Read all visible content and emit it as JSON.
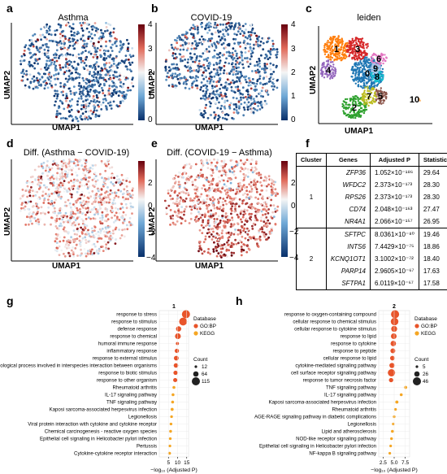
{
  "panels": {
    "a": {
      "letter": "a",
      "title": "Asthma",
      "xlabel": "UMAP1",
      "ylabel": "UMAP2",
      "cbar_ticks": [
        "4",
        "3",
        "2",
        "1",
        "0"
      ]
    },
    "b": {
      "letter": "b",
      "title": "COVID-19",
      "xlabel": "UMAP1",
      "ylabel": "UMAP2",
      "cbar_ticks": [
        "4",
        "3",
        "2",
        "1",
        "0"
      ]
    },
    "c": {
      "letter": "c",
      "title": "leiden",
      "xlabel": "UMAP1",
      "ylabel": "UMAP2",
      "clusters": [
        {
          "label": "0",
          "color": "#1f77b4"
        },
        {
          "label": "1",
          "color": "#ff7f0e"
        },
        {
          "label": "2",
          "color": "#2ca02c"
        },
        {
          "label": "3",
          "color": "#d62728"
        },
        {
          "label": "4",
          "color": "#9467bd"
        },
        {
          "label": "5",
          "color": "#8c564b"
        },
        {
          "label": "6",
          "color": "#e377c2"
        },
        {
          "label": "7",
          "color": "#bcbd22"
        },
        {
          "label": "8",
          "color": "#17becf"
        },
        {
          "label": "9",
          "color": "#aec7e8"
        },
        {
          "label": "10",
          "color": "#ffbb78"
        }
      ]
    },
    "d": {
      "letter": "d",
      "title": "Diff. (Asthma − COVID-19)",
      "xlabel": "UMAP1",
      "ylabel": "UMAP2",
      "cbar_ticks": [
        "2",
        "0",
        "−2",
        "−4"
      ]
    },
    "e": {
      "letter": "e",
      "title": "Diff. (COVID-19 − Asthma)",
      "xlabel": "UMAP1",
      "ylabel": "UMAP2",
      "cbar_ticks": [
        "2",
        "0",
        "−2",
        "−4"
      ]
    },
    "f": {
      "letter": "f",
      "headers": [
        "Cluster",
        "Genes",
        "Adjusted P",
        "Statistics"
      ],
      "groups": [
        {
          "cluster": "1",
          "rows": [
            {
              "gene": "ZFP36",
              "p": "1.052×10⁻¹⁸⁶",
              "stat": "29.64"
            },
            {
              "gene": "WFDC2",
              "p": "2.373×10⁻¹⁷³",
              "stat": "28.30"
            },
            {
              "gene": "RPS26",
              "p": "2.373×10⁻¹⁷³",
              "stat": "28.30"
            },
            {
              "gene": "CD74",
              "p": "2.048×10⁻¹⁶³",
              "stat": "27.47"
            },
            {
              "gene": "NR4A1",
              "p": "2.066×10⁻¹⁵⁷",
              "stat": "26.95"
            }
          ]
        },
        {
          "cluster": "2",
          "rows": [
            {
              "gene": "SFTPC",
              "p": "8.0361×10⁻⁸⁰",
              "stat": "19.46"
            },
            {
              "gene": "INTS6",
              "p": "7.4429×10⁻⁷⁵",
              "stat": "18.86"
            },
            {
              "gene": "KCNQ1OT1",
              "p": "3.1002×10⁻⁷²",
              "stat": "18.40"
            },
            {
              "gene": "PARP14",
              "p": "2.9605×10⁻⁶⁷",
              "stat": "17.63"
            },
            {
              "gene": "SFTPA1",
              "p": "6.0119×10⁻⁶⁷",
              "stat": "17.58"
            }
          ]
        }
      ]
    }
  },
  "chart_data": [
    {
      "type": "scatter",
      "panel": "g",
      "title": "1",
      "xlabel": "−log₁₀ (Adjusted P)",
      "xticks": [
        "5",
        "10",
        "15"
      ],
      "xlim": [
        0,
        16
      ],
      "legend_database_title": "Database",
      "legend_database": [
        {
          "name": "GO:BP",
          "color": "#e8542a"
        },
        {
          "name": "KEGG",
          "color": "#f5a623"
        }
      ],
      "legend_count_title": "Count",
      "legend_count": [
        "12",
        "64",
        "115"
      ],
      "categories": [
        "response to stress",
        "response to stimulus",
        "defense response",
        "response to chemical",
        "humoral immune response",
        "inflammatory response",
        "response to external stimulus",
        "biological process involved in interspecies interaction between organisms",
        "response to biotic stimulus",
        "response to other organism",
        "Rheumatoid arthritis",
        "IL-17 signaling pathway",
        "TNF signaling pathway",
        "Kaposi sarcoma-associated herpesvirus infection",
        "Legionellosis",
        "Viral protein interaction with cytokine and cytokine receptor",
        "Chemical carcinogenesis - reactive oxygen species",
        "Epithelial cell signaling in Helicobacter pylori infection",
        "Pertussis",
        "Cytokine-cytokine receptor interaction"
      ],
      "x": [
        14.6,
        13.0,
        10.6,
        10.2,
        9.9,
        9.6,
        9.3,
        9.1,
        8.9,
        8.7,
        8.0,
        7.5,
        7.3,
        7.0,
        6.7,
        6.4,
        6.2,
        6.0,
        5.8,
        5.6
      ],
      "count": [
        115,
        110,
        60,
        70,
        18,
        40,
        50,
        45,
        40,
        38,
        14,
        13,
        13,
        16,
        10,
        10,
        12,
        10,
        8,
        14
      ],
      "database": [
        "GO:BP",
        "GO:BP",
        "GO:BP",
        "GO:BP",
        "GO:BP",
        "GO:BP",
        "GO:BP",
        "GO:BP",
        "GO:BP",
        "GO:BP",
        "KEGG",
        "KEGG",
        "KEGG",
        "KEGG",
        "KEGG",
        "KEGG",
        "KEGG",
        "KEGG",
        "KEGG",
        "KEGG"
      ]
    },
    {
      "type": "scatter",
      "panel": "h",
      "title": "2",
      "xlabel": "−log₁₀ (Adjusted P)",
      "xticks": [
        "2.5",
        "5.0",
        "7.5"
      ],
      "xlim": [
        1.5,
        8.5
      ],
      "legend_database_title": "Database",
      "legend_database": [
        {
          "name": "GO:BP",
          "color": "#e8542a"
        },
        {
          "name": "KEGG",
          "color": "#f5a623"
        }
      ],
      "legend_count_title": "Count",
      "legend_count": [
        "5",
        "26",
        "46"
      ],
      "categories": [
        "response to oxygen-containing compound",
        "cellular response to chemical stimulus",
        "cellular response to cytokine stimulus",
        "response to lipid",
        "response to cytokine",
        "response to peptide",
        "cellular response to lipid",
        "cytokine-mediated signaling pathway",
        "cell surface receptor signaling pathway",
        "response to tumor necrosis factor",
        "TNF signaling pathway",
        "IL-17 signaling pathway",
        "Kaposi sarcoma-associated herpesvirus infection",
        "Rheumatoid arthritis",
        "AGE-RAGE signaling pathway in diabetic complications",
        "Legionellosis",
        "Lipid and atherosclerosis",
        "NOD-like receptor signaling pathway",
        "Epithelial cell signaling in Helicobacter pylori infection",
        "NF-kappa B signaling pathway"
      ],
      "x": [
        5.2,
        5.1,
        5.0,
        4.9,
        4.8,
        4.7,
        4.6,
        4.5,
        4.4,
        4.3,
        7.6,
        6.6,
        5.6,
        5.3,
        5.0,
        4.8,
        4.6,
        4.4,
        4.2,
        4.0
      ],
      "count": [
        46,
        42,
        30,
        28,
        26,
        22,
        20,
        24,
        40,
        18,
        8,
        7,
        9,
        6,
        6,
        5,
        7,
        6,
        5,
        5
      ],
      "database": [
        "GO:BP",
        "GO:BP",
        "GO:BP",
        "GO:BP",
        "GO:BP",
        "GO:BP",
        "GO:BP",
        "GO:BP",
        "GO:BP",
        "GO:BP",
        "KEGG",
        "KEGG",
        "KEGG",
        "KEGG",
        "KEGG",
        "KEGG",
        "KEGG",
        "KEGG",
        "KEGG",
        "KEGG"
      ]
    }
  ]
}
